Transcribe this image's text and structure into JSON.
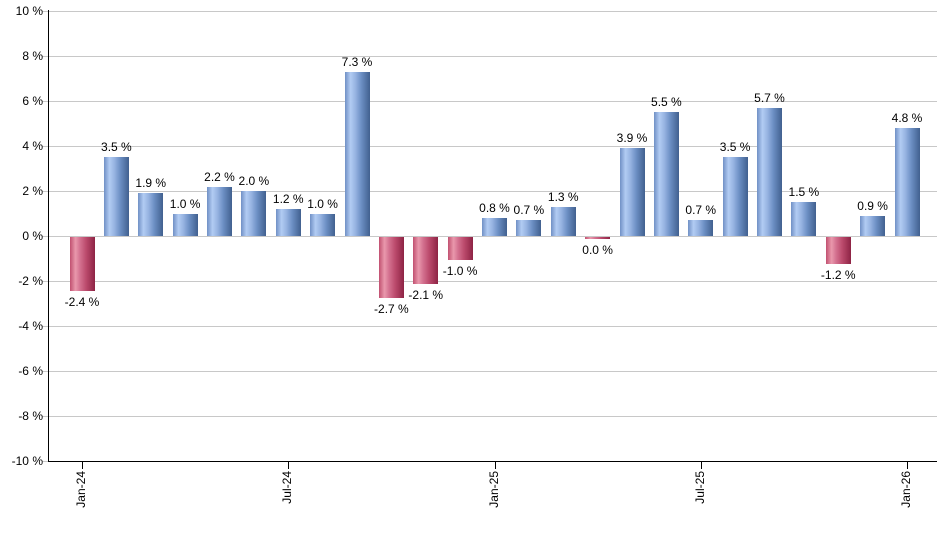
{
  "chart_data": {
    "type": "bar",
    "title": "",
    "xlabel": "",
    "ylabel": "",
    "y_unit": "%",
    "ylim": [
      -10,
      10
    ],
    "y_tick_step": 2,
    "y_tick_labels": [
      "10 %",
      "8 %",
      "6 %",
      "4 %",
      "2 %",
      "0 %",
      "-2 %",
      "-4 %",
      "-6 %",
      "-8 %",
      "-10 %"
    ],
    "grid": true,
    "legend_position": "none",
    "bars": [
      {
        "value": -2.4,
        "label": "-2.4 %",
        "color": "red"
      },
      {
        "value": 3.5,
        "label": "3.5 %",
        "color": "blue"
      },
      {
        "value": 1.9,
        "label": "1.9 %",
        "color": "blue"
      },
      {
        "value": 1.0,
        "label": "1.0 %",
        "color": "blue"
      },
      {
        "value": 2.2,
        "label": "2.2 %",
        "color": "blue"
      },
      {
        "value": 2.0,
        "label": "2.0 %",
        "color": "blue"
      },
      {
        "value": 1.2,
        "label": "1.2 %",
        "color": "blue"
      },
      {
        "value": 1.0,
        "label": "1.0 %",
        "color": "blue"
      },
      {
        "value": 7.3,
        "label": "7.3 %",
        "color": "blue"
      },
      {
        "value": -2.7,
        "label": "-2.7 %",
        "color": "red"
      },
      {
        "value": -2.1,
        "label": "-2.1 %",
        "color": "red"
      },
      {
        "value": -1.0,
        "label": "-1.0 %",
        "color": "red"
      },
      {
        "value": 0.8,
        "label": "0.8 %",
        "color": "blue"
      },
      {
        "value": 0.7,
        "label": "0.7 %",
        "color": "blue"
      },
      {
        "value": 1.3,
        "label": "1.3 %",
        "color": "blue"
      },
      {
        "value": 0.0,
        "label": "0.0 %",
        "color": "red"
      },
      {
        "value": 3.9,
        "label": "3.9 %",
        "color": "blue"
      },
      {
        "value": 5.5,
        "label": "5.5 %",
        "color": "blue"
      },
      {
        "value": 0.7,
        "label": "0.7 %",
        "color": "blue"
      },
      {
        "value": 3.5,
        "label": "3.5 %",
        "color": "blue"
      },
      {
        "value": 5.7,
        "label": "5.7 %",
        "color": "blue"
      },
      {
        "value": 1.5,
        "label": "1.5 %",
        "color": "blue"
      },
      {
        "value": -1.2,
        "label": "-1.2 %",
        "color": "red"
      },
      {
        "value": 0.9,
        "label": "0.9 %",
        "color": "blue"
      },
      {
        "value": 4.8,
        "label": "4.8 %",
        "color": "blue"
      }
    ],
    "x_ticks": [
      {
        "index": 0,
        "label": "Jan-24"
      },
      {
        "index": 6,
        "label": "Jul-24"
      },
      {
        "index": 12,
        "label": "Jan-25"
      },
      {
        "index": 18,
        "label": "Jul-25"
      },
      {
        "index": 24,
        "label": "Jan-26"
      }
    ],
    "colors": {
      "positive_bar": "#6c8fc4",
      "positive_bar_highlight": "#b2ccf3",
      "positive_bar_shadow": "#41608f",
      "negative_bar": "#bb4a6c",
      "negative_bar_highlight": "#e998ac",
      "negative_bar_shadow": "#8d2344",
      "gridline": "#c8c8c8",
      "axis": "#000000",
      "text": "#000000",
      "background": "#ffffff"
    }
  }
}
